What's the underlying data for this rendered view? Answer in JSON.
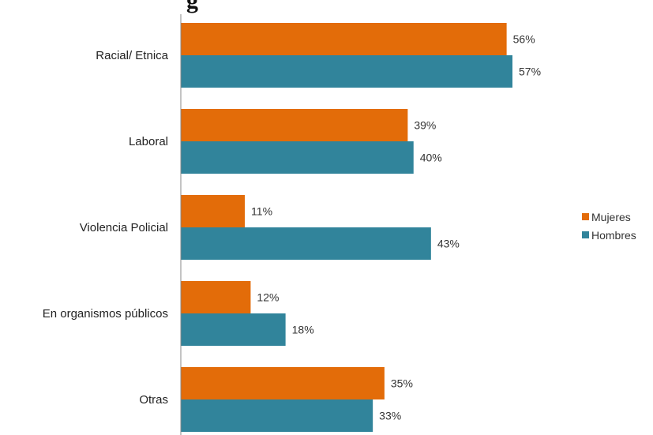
{
  "chart_data": {
    "type": "bar",
    "orientation": "horizontal",
    "title_fragment": "g",
    "categories": [
      "Racial/ Etnica",
      "Laboral",
      "Violencia Policial",
      "En organismos públicos",
      "Otras"
    ],
    "series": [
      {
        "name": "Mujeres",
        "color": "#E36C09",
        "values": [
          56,
          39,
          11,
          12,
          35
        ],
        "labels": [
          "56%",
          "39%",
          "11%",
          "12%",
          "35%"
        ]
      },
      {
        "name": "Hombres",
        "color": "#31849B",
        "values": [
          57,
          40,
          43,
          18,
          33
        ],
        "labels": [
          "57%",
          "40%",
          "43%",
          "18%",
          "33%"
        ]
      }
    ],
    "xlim": [
      0,
      80
    ],
    "grid": false,
    "legend_position": "right"
  }
}
